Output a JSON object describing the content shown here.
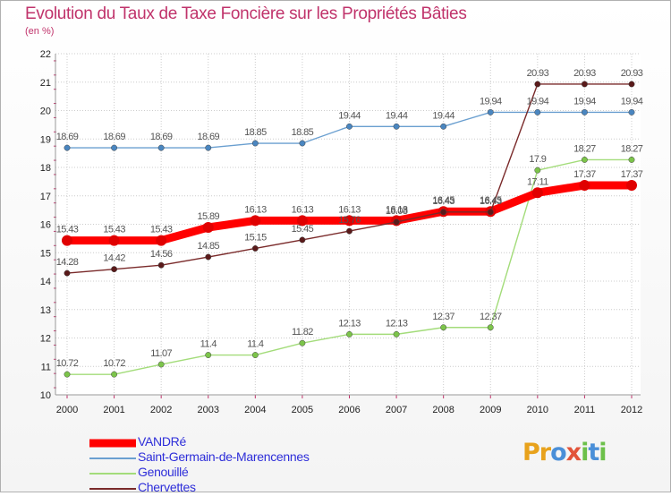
{
  "title": "Evolution du Taux de Taxe Foncière sur les Propriétés Bâties",
  "unit_label": "(en %)",
  "logo_text": "Proxiti",
  "chart_data": {
    "type": "line",
    "title": "Evolution du Taux de Taxe Foncière sur les Propriétés Bâties",
    "ylabel": "(en %)",
    "xlabel": "",
    "x": [
      "2000",
      "2001",
      "2002",
      "2003",
      "2004",
      "2005",
      "2006",
      "2007",
      "2008",
      "2009",
      "2010",
      "2011",
      "2012"
    ],
    "ylim": [
      10,
      22
    ],
    "yticks": [
      "10",
      "11",
      "12",
      "13",
      "14",
      "15",
      "16",
      "17",
      "18",
      "19",
      "20",
      "21",
      "22"
    ],
    "legend_position": "bottom-left",
    "series": [
      {
        "name": "VANDRé",
        "color": "#ff0000",
        "width": 9,
        "values": [
          15.43,
          15.43,
          15.43,
          15.89,
          16.13,
          16.13,
          16.13,
          16.13,
          16.45,
          16.45,
          17.11,
          17.37,
          17.37
        ],
        "labels": [
          "15.43",
          "15.43",
          "15.43",
          "15.89",
          "16.13",
          "16.13",
          "16.13",
          "16.13",
          "16.45",
          "16.45",
          "17.11",
          "17.37",
          "17.37"
        ]
      },
      {
        "name": "Saint-Germain-de-Marencennes",
        "color": "#6a9fd0",
        "width": 1.4,
        "values": [
          18.69,
          18.69,
          18.69,
          18.69,
          18.85,
          18.85,
          19.44,
          19.44,
          19.44,
          19.94,
          19.94,
          19.94,
          19.94
        ],
        "labels": [
          "18.69",
          "18.69",
          "18.69",
          "18.69",
          "18.85",
          "18.85",
          "19.44",
          "19.44",
          "19.44",
          "19.94",
          "19.94",
          "19.94",
          "19.94"
        ]
      },
      {
        "name": "Genouillé",
        "color": "#a3dc7a",
        "width": 1.4,
        "values": [
          10.72,
          10.72,
          11.07,
          11.4,
          11.4,
          11.82,
          12.13,
          12.13,
          12.37,
          12.37,
          17.9,
          18.27,
          18.27
        ],
        "labels": [
          "10.72",
          "10.72",
          "11.07",
          "11.4",
          "11.4",
          "11.82",
          "12.13",
          "12.13",
          "12.37",
          "12.37",
          "17.9",
          "18.27",
          "18.27"
        ]
      },
      {
        "name": "Chervettes",
        "color": "#7a2a2a",
        "width": 1.4,
        "values": [
          14.28,
          14.42,
          14.56,
          14.85,
          15.15,
          15.45,
          15.76,
          16.08,
          16.43,
          16.43,
          20.93,
          20.93,
          20.93
        ],
        "labels": [
          "14.28",
          "14.42",
          "14.56",
          "14.85",
          "15.15",
          "15.45",
          "15.76",
          "16.08",
          "16.43",
          "16.43",
          "20.93",
          "20.93",
          "20.93"
        ]
      }
    ]
  }
}
